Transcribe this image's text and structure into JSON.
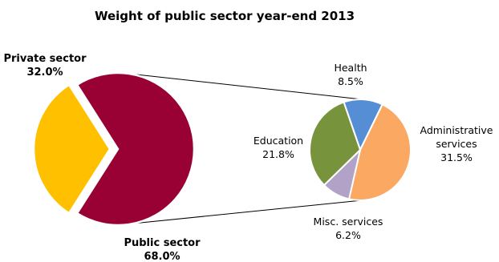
{
  "chart_data": {
    "type": "pie",
    "title": "Weight of public sector year-end 2013",
    "main_pie": {
      "slices": [
        {
          "label": "Private sector",
          "value": 32.0,
          "value_label": "32.0%",
          "color": "#FFC000"
        },
        {
          "label": "Public sector",
          "value": 68.0,
          "value_label": "68.0%",
          "color": "#990033"
        }
      ]
    },
    "breakdown_pie": {
      "of": "Public sector",
      "slices": [
        {
          "label": "Health",
          "value": 8.5,
          "value_label": "8.5%",
          "color": "#558ED5"
        },
        {
          "label": "Administrative services",
          "label_lines": [
            "Administrative",
            "services"
          ],
          "value": 31.5,
          "value_label": "31.5%",
          "color": "#FAA862"
        },
        {
          "label": "Misc. services",
          "value": 6.2,
          "value_label": "6.2%",
          "color": "#B3A2C7"
        },
        {
          "label": "Education",
          "value": 21.8,
          "value_label": "21.8%",
          "color": "#77933C"
        }
      ]
    }
  }
}
